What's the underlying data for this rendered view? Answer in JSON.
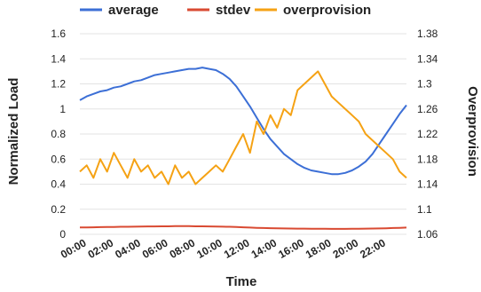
{
  "chart_data": {
    "type": "line",
    "xlabel": "Time",
    "ylabel_left": "Normalized Load",
    "ylabel_right": "Overprovision",
    "x_ticks": [
      "00:00",
      "02:00",
      "04:00",
      "06:00",
      "08:00",
      "10:00",
      "12:00",
      "14:00",
      "16:00",
      "18:00",
      "20:00",
      "22:00"
    ],
    "x_range": [
      0,
      24
    ],
    "ylim_left": [
      0,
      1.6
    ],
    "yticks_left": [
      "0",
      "0.2",
      "0.4",
      "0.6",
      "0.8",
      "1",
      "1.2",
      "1.4",
      "1.6"
    ],
    "ylim_right": [
      1.06,
      1.38
    ],
    "yticks_right": [
      "1.06",
      "1.1",
      "1.14",
      "1.18",
      "1.22",
      "1.26",
      "1.3",
      "1.34",
      "1.38"
    ],
    "grid": true,
    "legend_position": "top",
    "x": [
      0,
      0.5,
      1,
      1.5,
      2,
      2.5,
      3,
      3.5,
      4,
      4.5,
      5,
      5.5,
      6,
      6.5,
      7,
      7.5,
      8,
      8.5,
      9,
      9.5,
      10,
      10.5,
      11,
      11.5,
      12,
      12.5,
      13,
      13.5,
      14,
      14.5,
      15,
      15.5,
      16,
      16.5,
      17,
      17.5,
      18,
      18.5,
      19,
      19.5,
      20,
      20.5,
      21,
      21.5,
      22,
      22.5,
      23,
      23.5,
      24
    ],
    "series": [
      {
        "name": "average",
        "axis": "left",
        "color": "#3c6fd6",
        "values": [
          1.07,
          1.1,
          1.12,
          1.14,
          1.15,
          1.17,
          1.18,
          1.2,
          1.22,
          1.23,
          1.25,
          1.27,
          1.28,
          1.29,
          1.3,
          1.31,
          1.32,
          1.32,
          1.33,
          1.32,
          1.31,
          1.28,
          1.24,
          1.18,
          1.1,
          1.02,
          0.93,
          0.84,
          0.76,
          0.7,
          0.64,
          0.6,
          0.56,
          0.53,
          0.51,
          0.5,
          0.49,
          0.48,
          0.48,
          0.49,
          0.51,
          0.54,
          0.58,
          0.64,
          0.72,
          0.8,
          0.88,
          0.96,
          1.03
        ]
      },
      {
        "name": "stdev",
        "axis": "left",
        "color": "#d94a32",
        "values": [
          0.055,
          0.055,
          0.056,
          0.057,
          0.058,
          0.059,
          0.06,
          0.06,
          0.061,
          0.062,
          0.063,
          0.063,
          0.064,
          0.064,
          0.065,
          0.065,
          0.065,
          0.064,
          0.064,
          0.063,
          0.062,
          0.061,
          0.06,
          0.058,
          0.056,
          0.054,
          0.052,
          0.05,
          0.049,
          0.048,
          0.047,
          0.046,
          0.045,
          0.045,
          0.044,
          0.044,
          0.044,
          0.043,
          0.043,
          0.043,
          0.044,
          0.044,
          0.045,
          0.046,
          0.047,
          0.048,
          0.05,
          0.052,
          0.054
        ]
      },
      {
        "name": "overprovision",
        "axis": "right",
        "color": "#f5a214",
        "values": [
          1.16,
          1.17,
          1.15,
          1.18,
          1.16,
          1.19,
          1.17,
          1.15,
          1.18,
          1.16,
          1.17,
          1.15,
          1.16,
          1.14,
          1.17,
          1.15,
          1.16,
          1.14,
          1.15,
          1.16,
          1.17,
          1.16,
          1.18,
          1.2,
          1.22,
          1.19,
          1.24,
          1.22,
          1.25,
          1.23,
          1.26,
          1.25,
          1.29,
          1.3,
          1.31,
          1.32,
          1.3,
          1.28,
          1.27,
          1.26,
          1.25,
          1.24,
          1.22,
          1.21,
          1.2,
          1.19,
          1.18,
          1.16,
          1.15
        ]
      }
    ]
  }
}
